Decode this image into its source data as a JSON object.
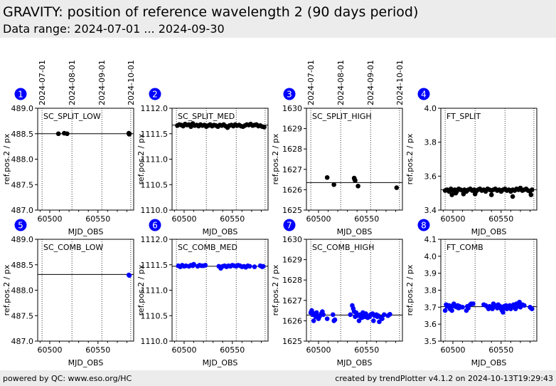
{
  "header": {
    "title": "GRAVITY: position of reference wavelength 2 (90 days period)",
    "subtitle": "Data range: 2024-07-01 ... 2024-09-30"
  },
  "footer": {
    "left": "powered by QC: www.eso.org/HC",
    "right": "created by trendPlotter v4.1.2 on 2024-10-13T19:29:43"
  },
  "colors": {
    "split_marker": "#000000",
    "comb_marker": "#0000ff",
    "badge": "#0000ff",
    "header_bg": "#ececec"
  },
  "chart_data": [
    {
      "type": "scatter",
      "panel": 1,
      "title": "SC_SPLIT_LOW",
      "xlabel": "MJD_OBS",
      "ylabel": "ref.pos.2 / px",
      "xlim": [
        60487.5,
        60587
      ],
      "ylim": [
        487.0,
        489.0
      ],
      "xticks": [
        60500,
        60550
      ],
      "yticks": [
        "487.0",
        "487.5",
        "488.0",
        "488.5",
        "489.0"
      ],
      "reference_line": 488.5,
      "marker_color": "#000000",
      "date_lines": [
        60492,
        60523,
        60554,
        60584
      ],
      "date_labels": [
        "2024-07-01",
        "2024-08-01",
        "2024-09-01",
        "2024-10-01"
      ],
      "x": [
        60509,
        60515,
        60518,
        60582,
        60582.3,
        60582.6
      ],
      "y": [
        488.5,
        488.51,
        488.5,
        488.51,
        488.49,
        488.5
      ]
    },
    {
      "type": "scatter",
      "panel": 2,
      "title": "SC_SPLIT_MED",
      "xlabel": "MJD_OBS",
      "ylabel": "ref.pos.2 / px",
      "xlim": [
        60487.5,
        60587
      ],
      "ylim": [
        1110.0,
        1112.0
      ],
      "xticks": [
        60500,
        60550
      ],
      "yticks": [
        "1110.0",
        "1110.5",
        "1111.0",
        "1111.5",
        "1112.0"
      ],
      "reference_line": 1111.67,
      "marker_color": "#000000",
      "date_lines": [
        60492,
        60523,
        60554,
        60584
      ],
      "x": [
        60493,
        60495,
        60497,
        60499,
        60501,
        60503,
        60505,
        60507,
        60509,
        60511,
        60513,
        60515,
        60517,
        60519,
        60521,
        60523,
        60525,
        60527,
        60529,
        60531,
        60533,
        60535,
        60537,
        60539,
        60541,
        60543,
        60545,
        60547,
        60549,
        60551,
        60553,
        60555,
        60557,
        60559,
        60561,
        60563,
        60565,
        60567,
        60569,
        60571,
        60573,
        60575,
        60577,
        60579,
        60581,
        60583
      ],
      "y": [
        1111.66,
        1111.68,
        1111.67,
        1111.65,
        1111.69,
        1111.67,
        1111.68,
        1111.64,
        1111.7,
        1111.66,
        1111.67,
        1111.65,
        1111.68,
        1111.66,
        1111.67,
        1111.64,
        1111.66,
        1111.68,
        1111.65,
        1111.67,
        1111.66,
        1111.64,
        1111.67,
        1111.66,
        1111.68,
        1111.65,
        1111.62,
        1111.66,
        1111.67,
        1111.65,
        1111.68,
        1111.66,
        1111.67,
        1111.65,
        1111.64,
        1111.66,
        1111.68,
        1111.67,
        1111.69,
        1111.66,
        1111.67,
        1111.68,
        1111.65,
        1111.66,
        1111.64,
        1111.63
      ]
    },
    {
      "type": "scatter",
      "panel": 3,
      "title": "SC_SPLIT_HIGH",
      "xlabel": "MJD_OBS",
      "ylabel": "ref.pos.2 / px",
      "xlim": [
        60487.5,
        60587
      ],
      "ylim": [
        1625,
        1630
      ],
      "xticks": [
        60500,
        60550
      ],
      "yticks": [
        "1625",
        "1626",
        "1627",
        "1628",
        "1629",
        "1630"
      ],
      "reference_line": 1626.35,
      "marker_color": "#000000",
      "date_lines": [
        60492,
        60523,
        60554,
        60584
      ],
      "x": [
        60509,
        60516,
        60537,
        60537.5,
        60538,
        60541,
        60581
      ],
      "y": [
        1626.6,
        1626.25,
        1626.57,
        1626.5,
        1626.45,
        1626.18,
        1626.1
      ]
    },
    {
      "type": "scatter",
      "panel": 4,
      "title": "FT_SPLIT",
      "xlabel": "MJD_OBS",
      "ylabel": "ref.pos.2 / px",
      "xlim": [
        60487.5,
        60587
      ],
      "ylim": [
        3.4,
        4.0
      ],
      "xticks": [
        60500,
        60550
      ],
      "yticks": [
        "3.4",
        "3.6",
        "3.8",
        "4.0"
      ],
      "reference_line": 3.52,
      "marker_color": "#000000",
      "date_lines": [
        60492,
        60523,
        60554,
        60584
      ],
      "x": [
        60492,
        60494,
        60496,
        60498,
        60500,
        60502,
        60504,
        60506,
        60508,
        60510,
        60512,
        60514,
        60516,
        60518,
        60520,
        60522,
        60524,
        60526,
        60528,
        60530,
        60532,
        60534,
        60536,
        60538,
        60540,
        60542,
        60544,
        60546,
        60548,
        60550,
        60552,
        60554,
        60556,
        60558,
        60560,
        60562,
        60564,
        60566,
        60568,
        60570,
        60572,
        60574,
        60576,
        60578,
        60580,
        60582,
        60499,
        60503,
        60511,
        60523,
        60540,
        60562,
        60581
      ],
      "y": [
        3.515,
        3.52,
        3.51,
        3.525,
        3.515,
        3.52,
        3.51,
        3.525,
        3.52,
        3.515,
        3.52,
        3.51,
        3.52,
        3.525,
        3.515,
        3.52,
        3.51,
        3.52,
        3.525,
        3.515,
        3.52,
        3.51,
        3.525,
        3.52,
        3.515,
        3.52,
        3.525,
        3.515,
        3.52,
        3.51,
        3.52,
        3.525,
        3.515,
        3.52,
        3.51,
        3.52,
        3.515,
        3.525,
        3.52,
        3.53,
        3.515,
        3.52,
        3.525,
        3.515,
        3.51,
        3.52,
        3.49,
        3.5,
        3.495,
        3.495,
        3.49,
        3.48,
        3.49
      ]
    },
    {
      "type": "scatter",
      "panel": 5,
      "title": "SC_COMB_LOW",
      "xlabel": "MJD_OBS",
      "ylabel": "ref.pos.2 / px",
      "xlim": [
        60487.5,
        60587
      ],
      "ylim": [
        487.0,
        489.0
      ],
      "xticks": [
        60500,
        60550
      ],
      "yticks": [
        "487.0",
        "487.5",
        "488.0",
        "488.5",
        "489.0"
      ],
      "reference_line": 488.31,
      "marker_color": "#0000ff",
      "date_lines": [
        60492,
        60523,
        60554,
        60584
      ],
      "x": [
        60582,
        60582.5
      ],
      "y": [
        488.3,
        488.29
      ]
    },
    {
      "type": "scatter",
      "panel": 6,
      "title": "SC_COMB_MED",
      "xlabel": "MJD_OBS",
      "ylabel": "ref.pos.2 / px",
      "xlim": [
        60487.5,
        60587
      ],
      "ylim": [
        1110.0,
        1112.0
      ],
      "xticks": [
        60500,
        60550
      ],
      "yticks": [
        "1110.0",
        "1110.5",
        "1111.0",
        "1111.5",
        "1112.0"
      ],
      "reference_line": 1111.47,
      "marker_color": "#0000ff",
      "date_lines": [
        60492,
        60523,
        60554,
        60584
      ],
      "x": [
        60494,
        60496,
        60498,
        60500,
        60502,
        60505,
        60507,
        60509,
        60510,
        60514,
        60516,
        60518,
        60520,
        60522,
        60536,
        60538,
        60540,
        60542,
        60544,
        60546,
        60548,
        60550,
        60552,
        60554,
        60556,
        60558,
        60560,
        60562,
        60564,
        60566,
        60568,
        60573,
        60579,
        60581,
        60582
      ],
      "y": [
        1111.48,
        1111.46,
        1111.49,
        1111.47,
        1111.48,
        1111.47,
        1111.49,
        1111.48,
        1111.51,
        1111.47,
        1111.49,
        1111.48,
        1111.48,
        1111.49,
        1111.47,
        1111.43,
        1111.47,
        1111.48,
        1111.46,
        1111.48,
        1111.47,
        1111.49,
        1111.48,
        1111.47,
        1111.49,
        1111.48,
        1111.46,
        1111.47,
        1111.45,
        1111.48,
        1111.47,
        1111.46,
        1111.48,
        1111.46,
        1111.47
      ]
    },
    {
      "type": "scatter",
      "panel": 7,
      "title": "SC_COMB_HIGH",
      "xlabel": "MJD_OBS",
      "ylabel": "ref.pos.2 / px",
      "xlim": [
        60487.5,
        60587
      ],
      "ylim": [
        1625,
        1630
      ],
      "xticks": [
        60500,
        60550
      ],
      "yticks": [
        "1625",
        "1626",
        "1627",
        "1628",
        "1629",
        "1630"
      ],
      "reference_line": 1626.28,
      "marker_color": "#0000ff",
      "date_lines": [
        60492,
        60523,
        60554,
        60584
      ],
      "x": [
        60492,
        60493,
        60494,
        60495,
        60496,
        60497,
        60498,
        60499,
        60500,
        60501,
        60503,
        60504,
        60505,
        60509,
        60515,
        60516,
        60517,
        60533,
        60535,
        60536,
        60537,
        60538,
        60539,
        60540,
        60541,
        60542,
        60543,
        60544,
        60545,
        60546,
        60547,
        60548,
        60549,
        60550,
        60551,
        60553,
        60554,
        60556,
        60557,
        60558,
        60560,
        60561,
        60562,
        60563,
        60565,
        60566,
        60568,
        60572,
        60574
      ],
      "y": [
        1626.4,
        1626.5,
        1626.3,
        1626.0,
        1626.35,
        1626.2,
        1626.4,
        1626.25,
        1626.1,
        1626.2,
        1626.35,
        1626.45,
        1626.3,
        1626.1,
        1626.3,
        1626.0,
        1626.05,
        1626.3,
        1626.75,
        1626.6,
        1626.45,
        1626.2,
        1626.4,
        1626.3,
        1626.25,
        1626.0,
        1626.3,
        1626.2,
        1626.15,
        1626.4,
        1626.3,
        1626.2,
        1626.35,
        1626.25,
        1626.15,
        1626.2,
        1626.3,
        1626.35,
        1626.0,
        1626.25,
        1626.3,
        1626.2,
        1626.25,
        1625.95,
        1626.15,
        1626.1,
        1626.3,
        1626.25,
        1626.32
      ]
    },
    {
      "type": "scatter",
      "panel": 8,
      "title": "FT_COMB",
      "xlabel": "MJD_OBS",
      "ylabel": "ref.pos.2 / px",
      "xlim": [
        60487.5,
        60587
      ],
      "ylim": [
        3.5,
        4.1
      ],
      "xticks": [
        60500,
        60550
      ],
      "yticks": [
        "3.5",
        "3.6",
        "3.7",
        "3.8",
        "3.9",
        "4.0",
        "4.1"
      ],
      "reference_line": 3.703,
      "marker_color": "#0000ff",
      "date_lines": [
        60492,
        60523,
        60554,
        60584
      ],
      "x": [
        60492,
        60493,
        60494,
        60496,
        60497,
        60498,
        60499,
        60500,
        60501,
        60502,
        60504,
        60505,
        60506,
        60507,
        60508,
        60510,
        60514,
        60515,
        60516,
        60518,
        60519,
        60521,
        60532,
        60534,
        60536,
        60537,
        60538,
        60540,
        60541,
        60542,
        60543,
        60544,
        60546,
        60547,
        60548,
        60549,
        60550,
        60551,
        60552,
        60553,
        60554,
        60555,
        60556,
        60557,
        60558,
        60559,
        60560,
        60561,
        60562,
        60563,
        60564,
        60565,
        60566,
        60567,
        60568,
        60569,
        60570,
        60572,
        60574,
        60580,
        60581,
        60582
      ],
      "y": [
        3.68,
        3.715,
        3.705,
        3.71,
        3.69,
        3.7,
        3.68,
        3.71,
        3.72,
        3.705,
        3.7,
        3.71,
        3.695,
        3.705,
        3.7,
        3.7,
        3.68,
        3.705,
        3.695,
        3.715,
        3.72,
        3.72,
        3.715,
        3.71,
        3.7,
        3.69,
        3.705,
        3.7,
        3.69,
        3.72,
        3.705,
        3.71,
        3.695,
        3.715,
        3.7,
        3.705,
        3.69,
        3.68,
        3.67,
        3.705,
        3.695,
        3.71,
        3.69,
        3.7,
        3.705,
        3.71,
        3.69,
        3.7,
        3.705,
        3.715,
        3.7,
        3.69,
        3.72,
        3.705,
        3.71,
        3.73,
        3.7,
        3.715,
        3.71,
        3.7,
        3.695,
        3.69
      ]
    }
  ]
}
